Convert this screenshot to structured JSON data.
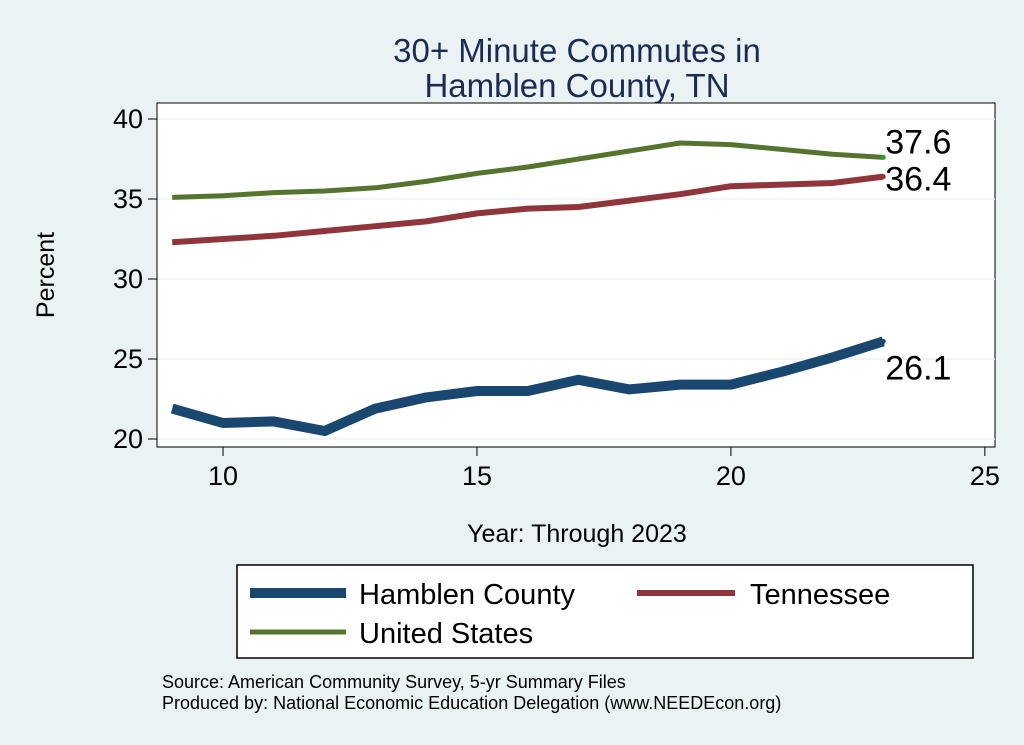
{
  "chart_data": {
    "type": "line",
    "title": [
      "30+ Minute Commutes in",
      "Hamblen County, TN"
    ],
    "xlabel": "Year: Through 2023",
    "ylabel": "Percent",
    "xlim": [
      8.7,
      25.2
    ],
    "ylim": [
      19.5,
      41
    ],
    "xticks": [
      10,
      15,
      20,
      25
    ],
    "yticks": [
      20,
      25,
      30,
      35,
      40
    ],
    "grid": true,
    "legend": "bottom",
    "series": [
      {
        "name": "Hamblen County",
        "color": "#1a476f",
        "x": [
          9,
          10,
          11,
          12,
          13,
          14,
          15,
          16,
          17,
          18,
          19,
          20,
          21,
          22,
          23
        ],
        "y": [
          21.9,
          21.0,
          21.1,
          20.5,
          21.9,
          22.6,
          23.0,
          23.0,
          23.7,
          23.1,
          23.4,
          23.4,
          24.2,
          25.1,
          26.1
        ],
        "end_label": "26.1"
      },
      {
        "name": "Tennessee",
        "color": "#90353b",
        "x": [
          9,
          10,
          11,
          12,
          13,
          14,
          15,
          16,
          17,
          18,
          19,
          20,
          21,
          22,
          23
        ],
        "y": [
          32.3,
          32.5,
          32.7,
          33.0,
          33.3,
          33.6,
          34.1,
          34.4,
          34.5,
          34.9,
          35.3,
          35.8,
          35.9,
          36.0,
          36.4
        ],
        "end_label": "36.4"
      },
      {
        "name": "United States",
        "color": "#55752f",
        "x": [
          9,
          10,
          11,
          12,
          13,
          14,
          15,
          16,
          17,
          18,
          19,
          20,
          21,
          22,
          23
        ],
        "y": [
          35.1,
          35.2,
          35.4,
          35.5,
          35.7,
          36.1,
          36.6,
          37.0,
          37.5,
          38.0,
          38.5,
          38.4,
          38.1,
          37.8,
          37.6
        ],
        "end_label": "37.6"
      }
    ]
  },
  "source": {
    "line1": "Source: American Community Survey, 5-yr Summary Files",
    "line2": "Produced by: National Economic Education Delegation (www.NEEDEcon.org)"
  }
}
